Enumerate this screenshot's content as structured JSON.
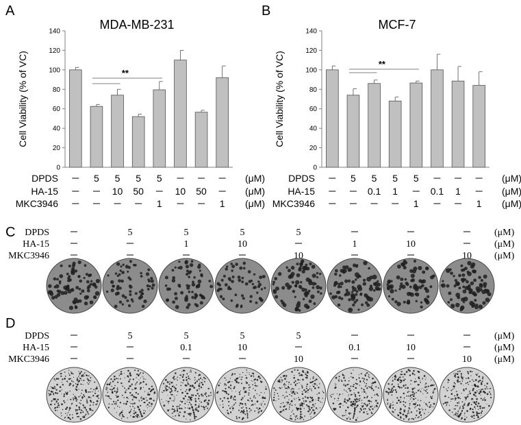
{
  "colors": {
    "bar_fill": "#c0c0c0",
    "bar_stroke": "#505050",
    "axis": "#7f7f7f"
  },
  "chart_data": [
    {
      "panel": "A",
      "type": "bar",
      "title": "MDA-MB-231",
      "ylabel": "Cell Viability (% of VC)",
      "ylim": [
        0,
        140
      ],
      "yticks": [
        0,
        20,
        40,
        60,
        80,
        100,
        120,
        140
      ],
      "grid": false,
      "series": [
        {
          "values": [
            100,
            62.5,
            74,
            52,
            79.5,
            110,
            56.5,
            92
          ],
          "errors": [
            2.5,
            2.0,
            6.0,
            2.5,
            8.5,
            10.0,
            2.0,
            12.0
          ]
        }
      ],
      "conditions": [
        {
          "label": "DPDS",
          "unit": "(μM)",
          "values": [
            "—",
            "5",
            "5",
            "5",
            "5",
            "—",
            "—",
            "—"
          ]
        },
        {
          "label": "HA-15",
          "unit": "(μM)",
          "values": [
            "—",
            "—",
            "10",
            "50",
            "—",
            "10",
            "50",
            "—"
          ]
        },
        {
          "label": "MKC3946",
          "unit": "(μM)",
          "values": [
            "—",
            "—",
            "—",
            "—",
            "1",
            "—",
            "—",
            "1"
          ]
        }
      ],
      "significance": [
        {
          "from_bar": 1,
          "to_bar": 2,
          "label": ""
        },
        {
          "from_bar": 1,
          "to_bar": 4,
          "label": "**"
        }
      ]
    },
    {
      "panel": "B",
      "type": "bar",
      "title": "MCF-7",
      "ylabel": "Cell Viability (% of VC)",
      "ylim": [
        0,
        140
      ],
      "yticks": [
        0,
        20,
        40,
        60,
        80,
        100,
        120,
        140
      ],
      "grid": false,
      "series": [
        {
          "values": [
            100,
            74,
            86,
            68,
            86.5,
            100,
            88.5,
            84
          ],
          "errors": [
            4.0,
            6.5,
            3.5,
            4.0,
            2.0,
            16.0,
            15.0,
            14.0
          ]
        }
      ],
      "conditions": [
        {
          "label": "DPDS",
          "unit": "(μM)",
          "values": [
            "—",
            "5",
            "5",
            "5",
            "5",
            "—",
            "—",
            "—"
          ]
        },
        {
          "label": "HA-15",
          "unit": "(μM)",
          "values": [
            "—",
            "—",
            "0.1",
            "1",
            "—",
            "0.1",
            "1",
            "—"
          ]
        },
        {
          "label": "MKC3946",
          "unit": "(μM)",
          "values": [
            "—",
            "—",
            "—",
            "—",
            "1",
            "—",
            "—",
            "1"
          ]
        }
      ],
      "significance": [
        {
          "from_bar": 1,
          "to_bar": 2,
          "label": ""
        },
        {
          "from_bar": 1,
          "to_bar": 4,
          "label": "**"
        }
      ]
    }
  ],
  "colony_panels": [
    {
      "panel": "C",
      "conditions": [
        {
          "label": "DPDS",
          "unit": "(μM)",
          "values": [
            "—",
            "5",
            "5",
            "5",
            "5",
            "—",
            "—",
            "—"
          ]
        },
        {
          "label": "HA-15",
          "unit": "(μM)",
          "values": [
            "—",
            "—",
            "1",
            "10",
            "—",
            "1",
            "10",
            "—"
          ]
        },
        {
          "label": "MKC3946",
          "unit": "(μM)",
          "values": [
            "—",
            "—",
            "—",
            "—",
            "10",
            "—",
            "—",
            "10"
          ]
        }
      ],
      "density": [
        0.55,
        0.35,
        0.42,
        0.3,
        0.55,
        0.62,
        0.52,
        0.6
      ]
    },
    {
      "panel": "D",
      "conditions": [
        {
          "label": "DPDS",
          "unit": "(μM)",
          "values": [
            "—",
            "5",
            "5",
            "5",
            "5",
            "—",
            "—",
            "—"
          ]
        },
        {
          "label": "HA-15",
          "unit": "(μM)",
          "values": [
            "—",
            "—",
            "0.1",
            "10",
            "—",
            "0.1",
            "10",
            "—"
          ]
        },
        {
          "label": "MKC3946",
          "unit": "(μM)",
          "values": [
            "—",
            "—",
            "—",
            "—",
            "10",
            "—",
            "—",
            "10"
          ]
        }
      ],
      "density": [
        0.55,
        0.4,
        0.5,
        0.3,
        0.55,
        0.42,
        0.5,
        0.52
      ]
    }
  ]
}
